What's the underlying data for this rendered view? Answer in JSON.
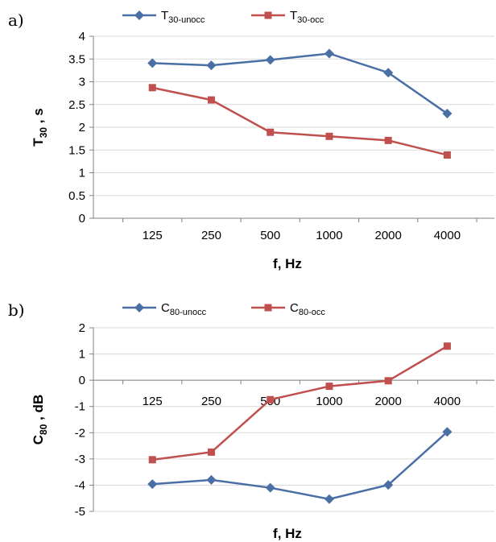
{
  "chart_data": [
    {
      "type": "line",
      "panel_label": "a)",
      "categories": [
        "125",
        "250",
        "500",
        "1000",
        "2000",
        "4000"
      ],
      "xlabel": "f, Hz",
      "ylabel": {
        "main": "T",
        "sub": "30",
        "suffix": " , s"
      },
      "ylim": [
        0,
        4
      ],
      "yticks": [
        "0",
        "0.5",
        "1",
        "1.5",
        "2",
        "2.5",
        "3",
        "3.5",
        "4"
      ],
      "grid": true,
      "legend_position": "top",
      "series": [
        {
          "name": "T",
          "sub": "30-unocc",
          "color": "#4a6fa5",
          "marker": "diamond",
          "values": [
            3.41,
            3.36,
            3.48,
            3.62,
            3.2,
            2.3
          ]
        },
        {
          "name": "T",
          "sub": "30-occ",
          "color": "#c0504d",
          "marker": "square",
          "values": [
            2.87,
            2.6,
            1.89,
            1.8,
            1.71,
            1.39
          ]
        }
      ]
    },
    {
      "type": "line",
      "panel_label": "b)",
      "categories": [
        "125",
        "250",
        "500",
        "1000",
        "2000",
        "4000"
      ],
      "xlabel": "f, Hz",
      "ylabel": {
        "main": "C",
        "sub": "80",
        "suffix": " , dB"
      },
      "ylim": [
        -5,
        2
      ],
      "yticks": [
        "-5",
        "-4",
        "-3",
        "-2",
        "-1",
        "0",
        "1",
        "2"
      ],
      "grid": true,
      "legend_position": "top",
      "series": [
        {
          "name": "C",
          "sub": "80-unocc",
          "color": "#4a6fa5",
          "marker": "diamond",
          "values": [
            -3.96,
            -3.8,
            -4.1,
            -4.53,
            -3.99,
            -1.97
          ]
        },
        {
          "name": "C",
          "sub": "80-occ",
          "color": "#c0504d",
          "marker": "square",
          "values": [
            -3.03,
            -2.74,
            -0.74,
            -0.23,
            -0.02,
            1.3
          ]
        }
      ]
    }
  ]
}
